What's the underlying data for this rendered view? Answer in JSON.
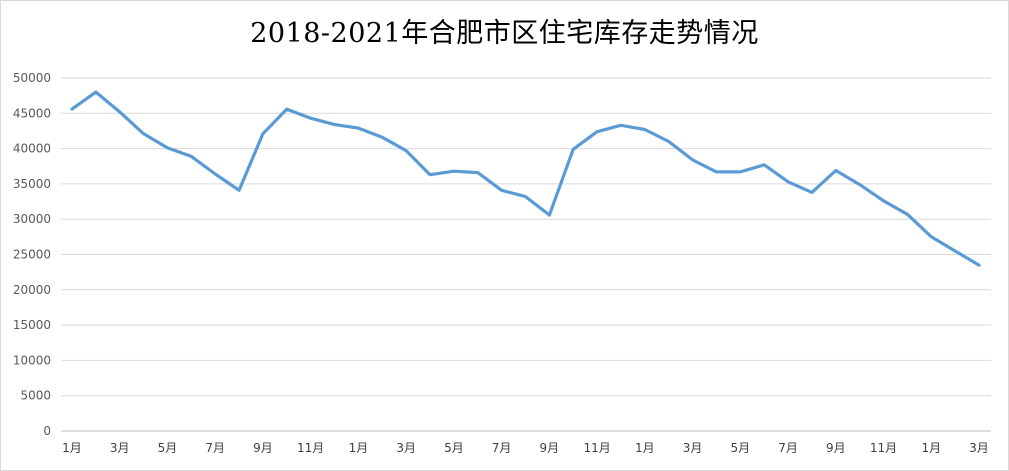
{
  "chart_data": {
    "type": "line",
    "title": "2018-2021年合肥市区住宅库存走势情况",
    "xlabel": "",
    "ylabel": "",
    "ylim": [
      0,
      50000
    ],
    "yticks": [
      0,
      5000,
      10000,
      15000,
      20000,
      25000,
      30000,
      35000,
      40000,
      45000,
      50000
    ],
    "grid": true,
    "legend": "none",
    "line_color": "#5b9bd5",
    "categories": [
      "1月",
      "2月",
      "3月",
      "4月",
      "5月",
      "6月",
      "7月",
      "8月",
      "9月",
      "10月",
      "11月",
      "12月",
      "1月",
      "2月",
      "3月",
      "4月",
      "5月",
      "6月",
      "7月",
      "8月",
      "9月",
      "10月",
      "11月",
      "12月",
      "1月",
      "2月",
      "3月",
      "4月",
      "5月",
      "6月",
      "7月",
      "8月",
      "9月",
      "10月",
      "11月",
      "12月",
      "1月",
      "2月",
      "3月"
    ],
    "shown_tick_labels": [
      "1月",
      "3月",
      "5月",
      "7月",
      "9月",
      "11月",
      "1月",
      "3月",
      "5月",
      "7月",
      "9月",
      "11月",
      "1月",
      "3月",
      "5月",
      "7月",
      "9月",
      "11月",
      "1月",
      "3月"
    ],
    "series": [
      {
        "values": [
          45600,
          48000,
          45200,
          42100,
          40100,
          38900,
          36400,
          34100,
          42100,
          45600,
          44300,
          43400,
          42900,
          41600,
          39700,
          36300,
          36800,
          36600,
          34100,
          33200,
          30600,
          39900,
          42400,
          43300,
          42700,
          41000,
          38400,
          36700,
          36700,
          37700,
          35300,
          33800,
          36900,
          34900,
          32600,
          30700,
          27500,
          25500,
          23500
        ]
      }
    ]
  }
}
